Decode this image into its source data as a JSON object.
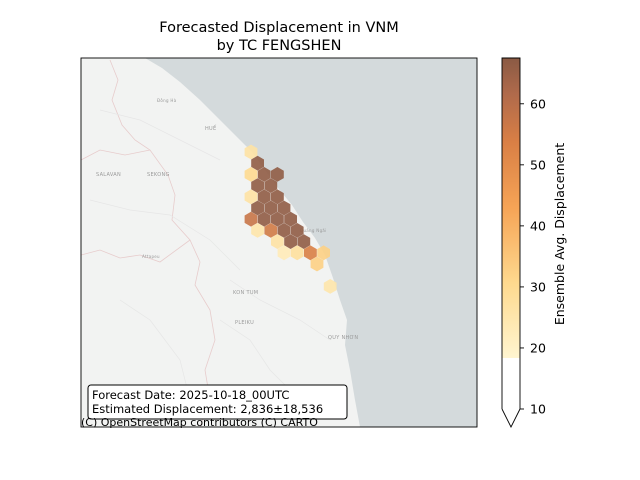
{
  "title": {
    "line1": "Forecasted Displacement in VNM",
    "line2": "by TC FENGSHEN"
  },
  "map": {
    "place_labels": [
      "HUẾ",
      "SALAVAN",
      "SEKONG",
      "KON TUM",
      "PLEIKU",
      "QUY NHƠN"
    ],
    "minor_labels": [
      "Đông Hà",
      "Attapeu",
      "Quảng Ngãi"
    ],
    "attribution": "(C) OpenStreetMap contributors (C) CARTO",
    "colors": {
      "sea": "#d4dadc",
      "land": "#f2f3f2",
      "border": "#e9c8c8"
    }
  },
  "info_box": {
    "forecast_line": "Forecast Date: 2025-10-18_00UTC",
    "displacement_line": "Estimated Displacement: 2,836±18,536"
  },
  "colorbar": {
    "label": "Ensemble Avg. Displacement",
    "ticks": [
      "10",
      "20",
      "30",
      "40",
      "50",
      "60"
    ],
    "tick_values": [
      10,
      20,
      30,
      40,
      50,
      60
    ],
    "vmin": 10,
    "vmax": 67.5,
    "under_threshold": 18.5,
    "extend": "min",
    "colormap": "copper-orange",
    "colors": [
      "#fff5d0",
      "#fed98e",
      "#f6a456",
      "#d97f45",
      "#b06a4b",
      "#8a5a44"
    ]
  },
  "chart_data": {
    "type": "hexbin",
    "hexes": [
      {
        "col": 0,
        "row": 0,
        "value": 25
      },
      {
        "col": 1,
        "row": 1,
        "value": 66
      },
      {
        "col": 0,
        "row": 2,
        "value": 28
      },
      {
        "col": 1,
        "row": 3,
        "value": 66
      },
      {
        "col": 2,
        "row": 2,
        "value": 66
      },
      {
        "col": 2,
        "row": 4,
        "value": 66
      },
      {
        "col": 0,
        "row": 4,
        "value": 25
      },
      {
        "col": 1,
        "row": 5,
        "value": 66
      },
      {
        "col": 3,
        "row": 3,
        "value": 66
      },
      {
        "col": 4,
        "row": 4,
        "value": 66
      },
      {
        "col": 4,
        "row": 2,
        "value": 66
      },
      {
        "col": 3,
        "row": 5,
        "value": 66
      },
      {
        "col": 5,
        "row": 5,
        "value": 66
      },
      {
        "col": 0,
        "row": 6,
        "value": 52
      },
      {
        "col": 2,
        "row": 6,
        "value": 66
      },
      {
        "col": 4,
        "row": 6,
        "value": 66
      },
      {
        "col": 6,
        "row": 6,
        "value": 66
      },
      {
        "col": 1,
        "row": 7,
        "value": 24
      },
      {
        "col": 3,
        "row": 7,
        "value": 50
      },
      {
        "col": 5,
        "row": 7,
        "value": 66
      },
      {
        "col": 7,
        "row": 7,
        "value": 66
      },
      {
        "col": 4,
        "row": 8,
        "value": 25
      },
      {
        "col": 6,
        "row": 8,
        "value": 66
      },
      {
        "col": 8,
        "row": 8,
        "value": 66
      },
      {
        "col": 5,
        "row": 9,
        "value": 22
      },
      {
        "col": 7,
        "row": 9,
        "value": 26
      },
      {
        "col": 9,
        "row": 9,
        "value": 48
      },
      {
        "col": 11,
        "row": 9,
        "value": 30
      },
      {
        "col": 10,
        "row": 10,
        "value": 30
      },
      {
        "col": 12,
        "row": 12,
        "value": 24
      }
    ]
  }
}
